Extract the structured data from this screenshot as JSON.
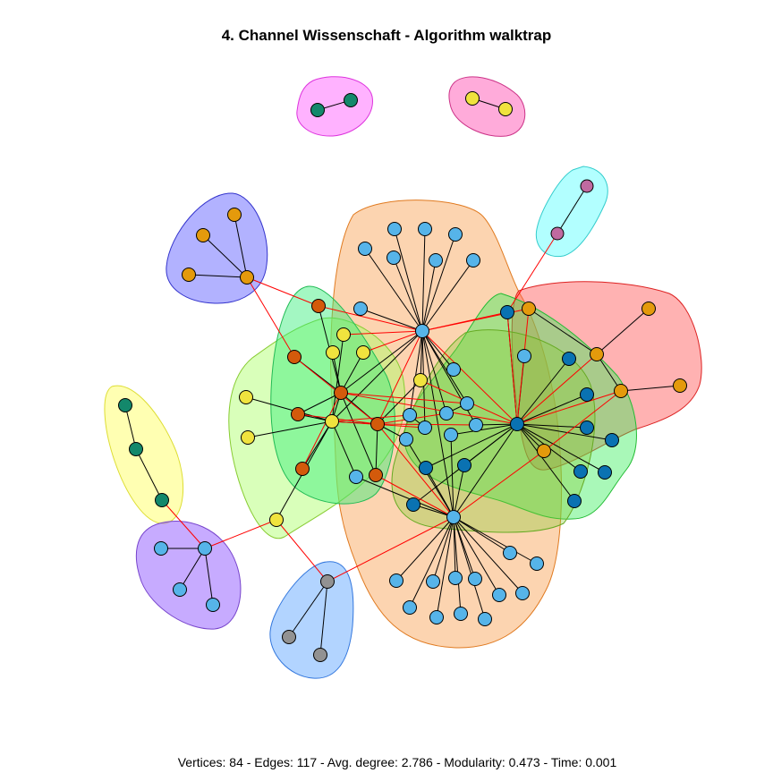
{
  "title": "4. Channel Wissenschaft - Algorithm walktrap",
  "caption": "Vertices: 84 - Edges: 117 - Avg. degree: 2.786 - Modularity: 0.473 - Time: 0.001",
  "stats": {
    "vertices": 84,
    "edges": 117,
    "avg_degree": 2.786,
    "modularity": 0.473,
    "time": 0.001
  },
  "colors": {
    "intra_edge": "#000000",
    "inter_edge": "#ff0000",
    "vertex_stroke": "#000000",
    "community_fills": {
      "magenta": "#ff66ff",
      "pink": "#ff66bb",
      "cyan": "#66ffff",
      "blue": "#6666ff",
      "orange": "#f8a050",
      "red": "#ff5555",
      "green": "#33ee55",
      "lightgreen": "#aaff66",
      "lime": "#66cc22",
      "yellow": "#ffff66",
      "purple": "#9966ff",
      "skyblue": "#66aaff"
    },
    "vertex_fills": {
      "teal": "#13886b",
      "mauve": "#c06aa0",
      "amber": "#e49a0c",
      "sky": "#56b4e9",
      "navy": "#0a72b2",
      "rust": "#d35a0b",
      "gold": "#f0e33e",
      "gray": "#929292"
    }
  }
}
